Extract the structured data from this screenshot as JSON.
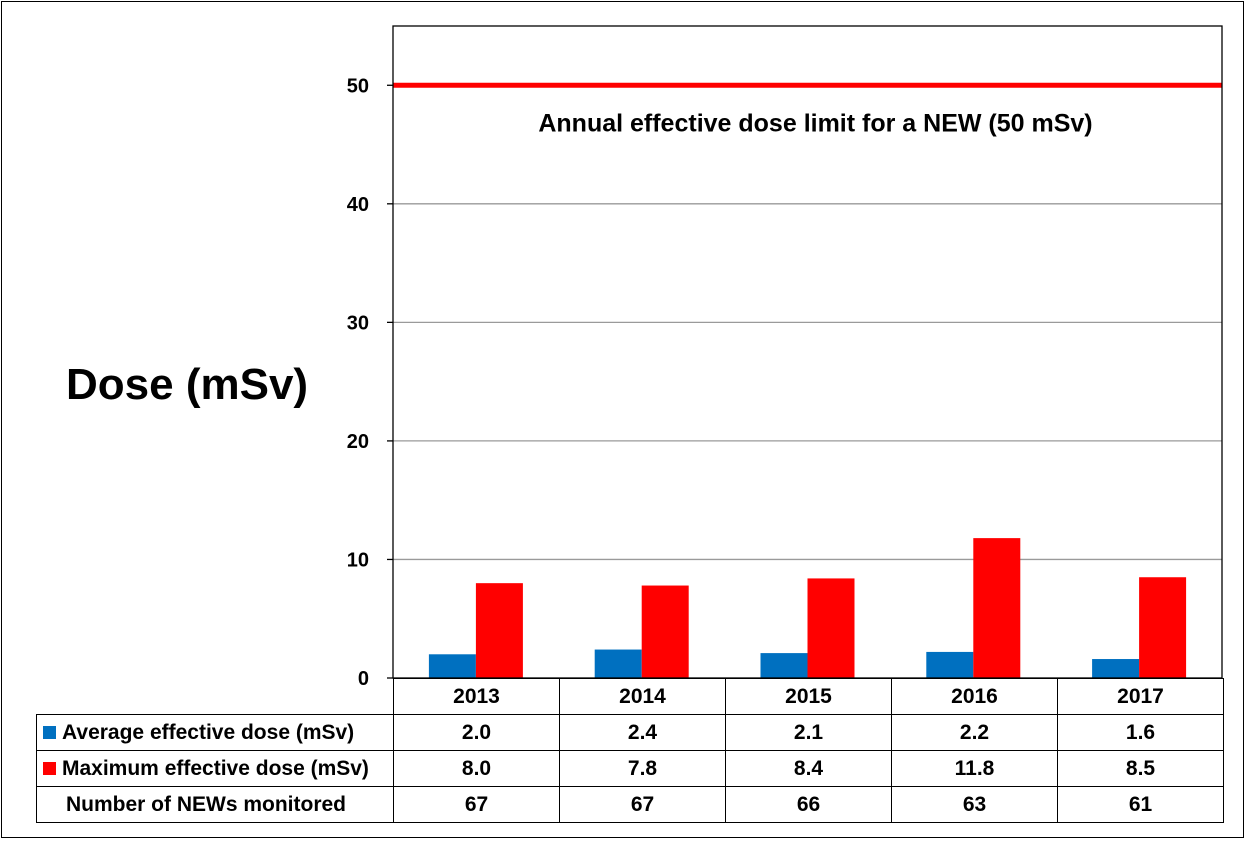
{
  "chart_data": {
    "type": "bar",
    "categories": [
      "2013",
      "2014",
      "2015",
      "2016",
      "2017"
    ],
    "series": [
      {
        "name": "Average effective dose (mSv)",
        "values": [
          2.0,
          2.4,
          2.1,
          2.2,
          1.6
        ],
        "color": "#0070C0"
      },
      {
        "name": "Maximum effective dose (mSv)",
        "values": [
          8.0,
          7.8,
          8.4,
          11.8,
          8.5
        ],
        "color": "#FF0000"
      }
    ],
    "extra_row": {
      "name": "Number of NEWs monitored",
      "values": [
        "67",
        "67",
        "66",
        "63",
        "61"
      ]
    },
    "title": "",
    "xlabel": "",
    "ylabel": "Dose (mSv)",
    "ylim": [
      0,
      55
    ],
    "yticks": [
      0,
      10,
      20,
      30,
      40,
      50
    ],
    "grid": true,
    "legend": "data table below chart",
    "reference_line": {
      "value": 50,
      "label": "Annual effective dose limit for a NEW (50 mSv)",
      "color": "#FF0000"
    }
  }
}
